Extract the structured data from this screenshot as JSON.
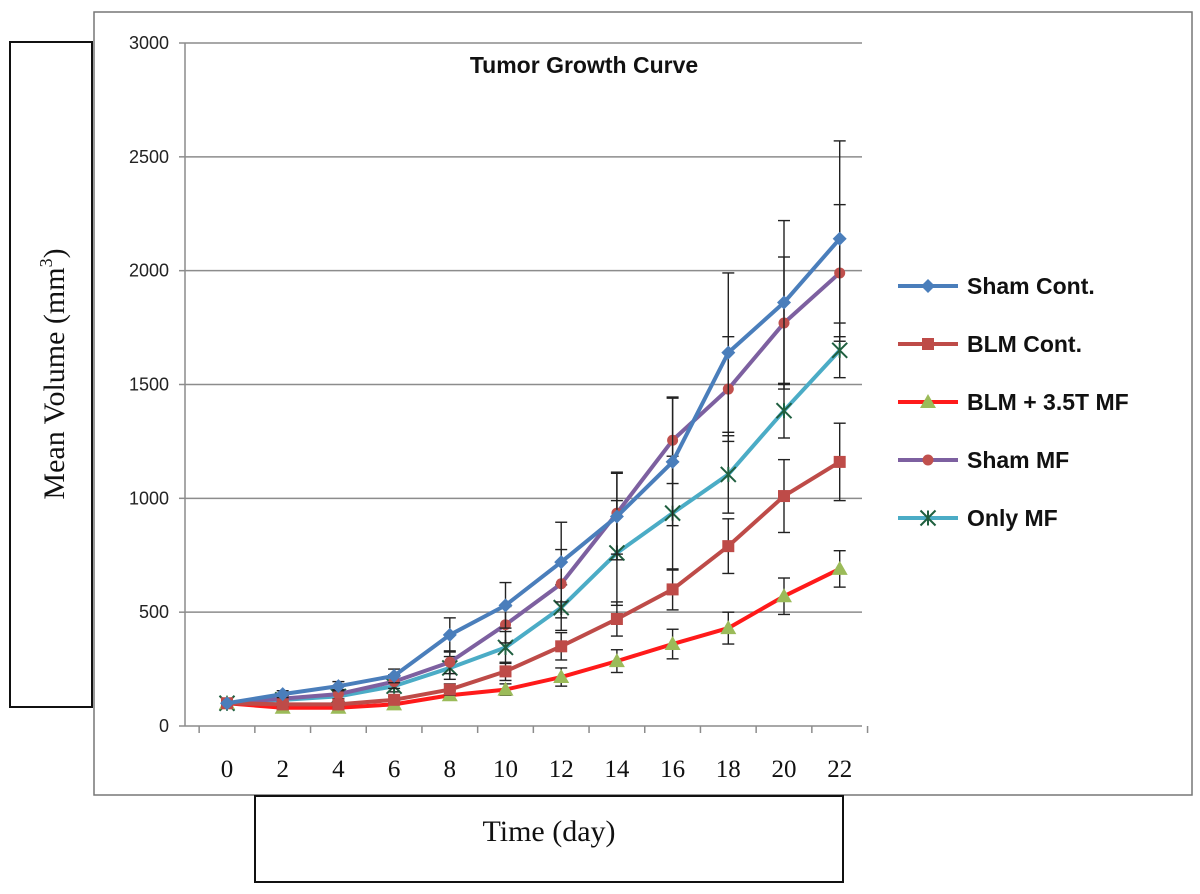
{
  "chart_data": {
    "type": "line",
    "title": "Tumor Growth Curve",
    "xlabel": "Time (day)",
    "ylabel": "Mean Volume (mm",
    "ylabel_superscript": "3",
    "ylabel_suffix": ")",
    "x": [
      0,
      2,
      4,
      6,
      8,
      10,
      12,
      14,
      16,
      18,
      20,
      22
    ],
    "x_tick_labels": [
      "0",
      "2",
      "4",
      "6",
      "8",
      "10",
      "12",
      "14",
      "16",
      "18",
      "20",
      "22"
    ],
    "y_tick_labels": [
      "0",
      "500",
      "1000",
      "1500",
      "2000",
      "2500",
      "3000"
    ],
    "ylim": [
      0,
      3000
    ],
    "grid": "horizontal",
    "legend_position": "right",
    "series": [
      {
        "name": "Sham Cont.",
        "color": "#4a7ebb",
        "marker": "diamond",
        "values": [
          100,
          140,
          175,
          220,
          400,
          530,
          720,
          920,
          1160,
          1640,
          1860,
          2140
        ],
        "errors": [
          0,
          15,
          20,
          30,
          75,
          100,
          175,
          190,
          280,
          350,
          360,
          430
        ]
      },
      {
        "name": "BLM Cont.",
        "color": "#be4b48",
        "marker": "square",
        "values": [
          100,
          95,
          95,
          115,
          160,
          240,
          350,
          470,
          600,
          790,
          1010,
          1160
        ],
        "errors": [
          0,
          10,
          10,
          15,
          25,
          40,
          60,
          75,
          90,
          120,
          160,
          170
        ]
      },
      {
        "name": "BLM + 3.5T MF",
        "color": "#ff1a1a",
        "marker": "triangle",
        "marker_color": "#9bbb59",
        "values": [
          100,
          80,
          80,
          95,
          135,
          160,
          215,
          285,
          360,
          430,
          570,
          690
        ],
        "errors": [
          0,
          10,
          10,
          15,
          20,
          25,
          40,
          50,
          65,
          70,
          80,
          80
        ]
      },
      {
        "name": "Sham MF",
        "color": "#7d60a0",
        "marker": "circle",
        "marker_color": "#c0504d",
        "values": [
          100,
          120,
          140,
          195,
          280,
          445,
          625,
          935,
          1255,
          1480,
          1770,
          1990
        ],
        "errors": [
          0,
          15,
          20,
          30,
          50,
          80,
          150,
          180,
          190,
          230,
          290,
          300
        ]
      },
      {
        "name": "Only MF",
        "color": "#4bacc6",
        "marker": "star",
        "marker_color": "#1f5f3f",
        "values": [
          100,
          115,
          130,
          175,
          255,
          345,
          520,
          760,
          935,
          1105,
          1385,
          1650
        ],
        "errors": [
          0,
          15,
          20,
          25,
          50,
          70,
          100,
          230,
          250,
          170,
          120,
          120
        ]
      }
    ]
  }
}
